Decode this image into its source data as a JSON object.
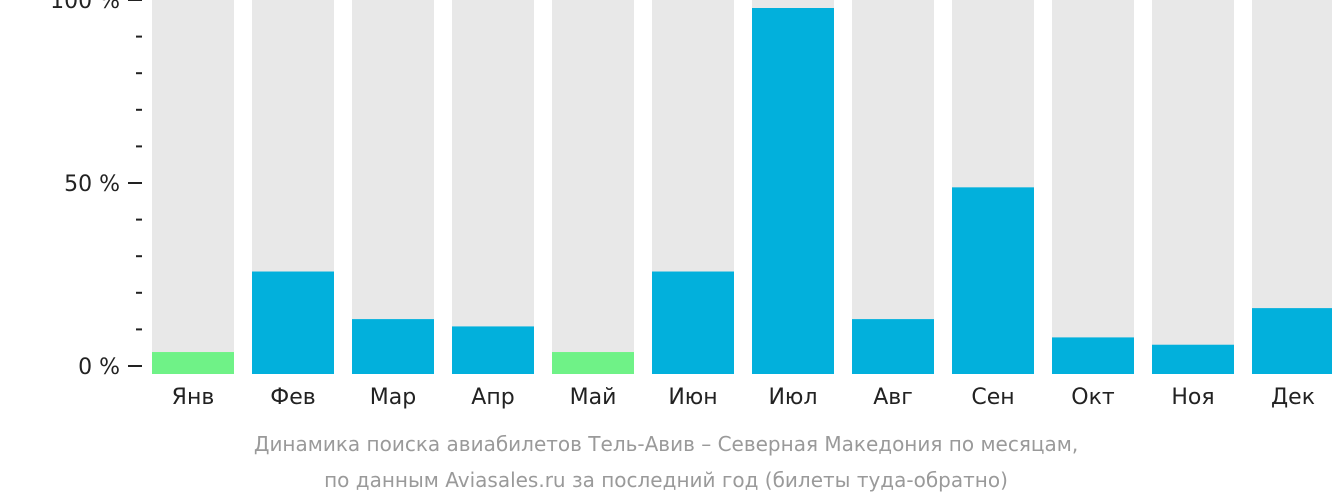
{
  "chart_data": {
    "type": "bar",
    "categories": [
      "Янв",
      "Фев",
      "Мар",
      "Апр",
      "Май",
      "Июн",
      "Июл",
      "Авг",
      "Сен",
      "Окт",
      "Ноя",
      "Дек"
    ],
    "values": [
      6,
      28,
      15,
      13,
      6,
      28,
      100,
      15,
      51,
      10,
      8,
      18
    ],
    "highlight": [
      true,
      false,
      false,
      false,
      true,
      false,
      false,
      false,
      false,
      false,
      false,
      false
    ],
    "ylim": [
      0,
      100
    ],
    "y_ticks": [
      {
        "value": 0,
        "label": "0 %"
      },
      {
        "value": 50,
        "label": "50 %"
      },
      {
        "value": 100,
        "label": "100 %"
      }
    ],
    "minor_tick_step": 10,
    "colors": {
      "bar": "#02b0dc",
      "bar_highlight": "#6ff287",
      "track": "#e8e8e8",
      "axis": "#222222"
    },
    "caption": {
      "line1": "Динамика поиска авиабилетов Тель-Авив – Северная Македония по месяцам,",
      "line2": "по данным Aviasales.ru за последний год (билеты туда-обратно)"
    }
  }
}
